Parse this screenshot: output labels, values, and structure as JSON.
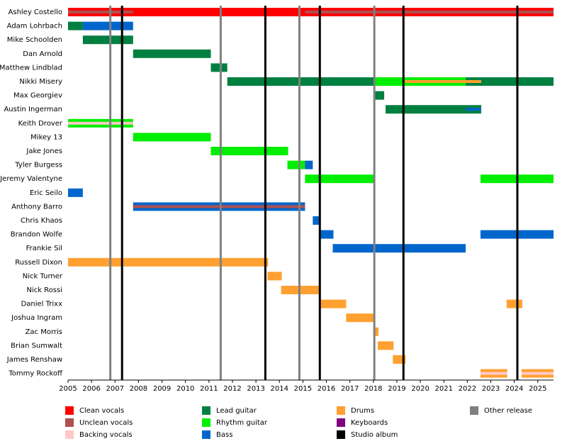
{
  "chart_data": {
    "type": "timeline",
    "xlim": [
      2005,
      2025.67
    ],
    "xticks": [
      2005,
      2006,
      2007,
      2008,
      2009,
      2010,
      2011,
      2012,
      2013,
      2014,
      2015,
      2016,
      2017,
      2018,
      2019,
      2020,
      2021,
      2022,
      2023,
      2024,
      2025
    ],
    "legend": [
      {
        "name": "Clean vocals",
        "color": "#ff0000"
      },
      {
        "name": "Unclean vocals",
        "color": "#b05050"
      },
      {
        "name": "Backing vocals",
        "color": "#ffc8c8"
      },
      {
        "name": "Lead guitar",
        "color": "#008040"
      },
      {
        "name": "Rhythm guitar",
        "color": "#00ee00"
      },
      {
        "name": "Bass",
        "color": "#0066cc"
      },
      {
        "name": "Drums",
        "color": "#ffa030"
      },
      {
        "name": "Keyboards",
        "color": "#800080"
      },
      {
        "name": "Studio album",
        "color": "#000000"
      },
      {
        "name": "Other release",
        "color": "#808080"
      }
    ],
    "studio_albums": [
      2007.3,
      2013.4,
      2015.72,
      2019.28,
      2024.13
    ],
    "other_releases": [
      2006.8,
      2011.5,
      2014.85,
      2018.04
    ],
    "members": [
      {
        "name": "Ashley Costello",
        "bars": [
          {
            "role": 0,
            "start": 2005,
            "end": 2025.67
          },
          {
            "role": 1,
            "start": 2005,
            "end": 2007.77,
            "thin": true
          },
          {
            "role": 1,
            "start": 2015.09,
            "end": 2025.67,
            "thin": true
          }
        ]
      },
      {
        "name": "Adam Lohrbach",
        "bars": [
          {
            "role": 3,
            "start": 2005,
            "end": 2005.63
          },
          {
            "role": 5,
            "start": 2005.63,
            "end": 2007.77
          }
        ]
      },
      {
        "name": "Mike Schoolden",
        "bars": [
          {
            "role": 3,
            "start": 2005.63,
            "end": 2007.77
          }
        ]
      },
      {
        "name": "Dan Arnold",
        "bars": [
          {
            "role": 3,
            "start": 2007.77,
            "end": 2011.08
          }
        ]
      },
      {
        "name": "Matthew Lindblad",
        "bars": [
          {
            "role": 3,
            "start": 2011.08,
            "end": 2011.78
          }
        ]
      },
      {
        "name": "Nikki Misery",
        "bars": [
          {
            "role": 3,
            "start": 2011.78,
            "end": 2025.67
          },
          {
            "role": 4,
            "start": 2018.01,
            "end": 2021.93
          },
          {
            "role": 6,
            "start": 2019.34,
            "end": 2022.59,
            "thin": true
          }
        ]
      },
      {
        "name": "Max Georgiev",
        "bars": [
          {
            "role": 3,
            "start": 2018.01,
            "end": 2018.46
          }
        ]
      },
      {
        "name": "Austin Ingerman",
        "bars": [
          {
            "role": 3,
            "start": 2018.52,
            "end": 2022.59
          },
          {
            "role": 5,
            "start": 2021.93,
            "end": 2022.59,
            "thin": true
          }
        ]
      },
      {
        "name": "Keith Drover",
        "bars": [
          {
            "role": 4,
            "start": 2005,
            "end": 2007.77
          },
          {
            "role": 2,
            "start": 2005,
            "end": 2007.77,
            "thin": true
          }
        ]
      },
      {
        "name": "Mikey 13",
        "bars": [
          {
            "role": 4,
            "start": 2007.77,
            "end": 2011.08
          }
        ]
      },
      {
        "name": "Jake Jones",
        "bars": [
          {
            "role": 4,
            "start": 2011.08,
            "end": 2014.37
          }
        ]
      },
      {
        "name": "Tyler Burgess",
        "bars": [
          {
            "role": 4,
            "start": 2014.34,
            "end": 2015.09
          },
          {
            "role": 5,
            "start": 2015.09,
            "end": 2015.42
          }
        ]
      },
      {
        "name": "Jeremy Valentyne",
        "bars": [
          {
            "role": 4,
            "start": 2015.09,
            "end": 2018.04
          },
          {
            "role": 4,
            "start": 2022.56,
            "end": 2025.67
          }
        ]
      },
      {
        "name": "Eric Seilo",
        "bars": [
          {
            "role": 5,
            "start": 2005,
            "end": 2005.63
          }
        ]
      },
      {
        "name": "Anthony Barro",
        "bars": [
          {
            "role": 5,
            "start": 2007.77,
            "end": 2015.09
          },
          {
            "role": 1,
            "start": 2007.77,
            "end": 2015.09,
            "thin": true
          }
        ]
      },
      {
        "name": "Chris Khaos",
        "bars": [
          {
            "role": 5,
            "start": 2015.42,
            "end": 2015.72
          }
        ]
      },
      {
        "name": "Brandon Wolfe",
        "bars": [
          {
            "role": 5,
            "start": 2015.72,
            "end": 2016.3
          },
          {
            "role": 5,
            "start": 2022.56,
            "end": 2025.67
          }
        ]
      },
      {
        "name": "Frankie Sil",
        "bars": [
          {
            "role": 5,
            "start": 2016.27,
            "end": 2021.93
          }
        ]
      },
      {
        "name": "Russell Dixon",
        "bars": [
          {
            "role": 6,
            "start": 2005,
            "end": 2013.52
          }
        ]
      },
      {
        "name": "Nick Turner",
        "bars": [
          {
            "role": 6,
            "start": 2013.49,
            "end": 2014.1
          }
        ]
      },
      {
        "name": "Nick Rossi",
        "bars": [
          {
            "role": 6,
            "start": 2014.07,
            "end": 2015.72
          }
        ]
      },
      {
        "name": "Daniel Trixx",
        "bars": [
          {
            "role": 6,
            "start": 2015.72,
            "end": 2016.84
          },
          {
            "role": 6,
            "start": 2023.67,
            "end": 2024.34
          }
        ]
      },
      {
        "name": "Joshua Ingram",
        "bars": [
          {
            "role": 6,
            "start": 2016.84,
            "end": 2018.04
          }
        ]
      },
      {
        "name": "Zac Morris",
        "bars": [
          {
            "role": 6,
            "start": 2018.01,
            "end": 2018.22
          }
        ]
      },
      {
        "name": "Brian Sumwalt",
        "bars": [
          {
            "role": 6,
            "start": 2018.19,
            "end": 2018.86
          }
        ]
      },
      {
        "name": "James Renshaw",
        "bars": [
          {
            "role": 6,
            "start": 2018.83,
            "end": 2019.37
          }
        ]
      },
      {
        "name": "Tommy Rockoff",
        "bars": [
          {
            "role": 6,
            "start": 2022.56,
            "end": 2023.7
          },
          {
            "role": 2,
            "start": 2022.56,
            "end": 2023.7,
            "thin": true
          },
          {
            "role": 6,
            "start": 2024.31,
            "end": 2025.67
          },
          {
            "role": 2,
            "start": 2024.31,
            "end": 2025.67,
            "thin": true
          }
        ]
      }
    ]
  }
}
